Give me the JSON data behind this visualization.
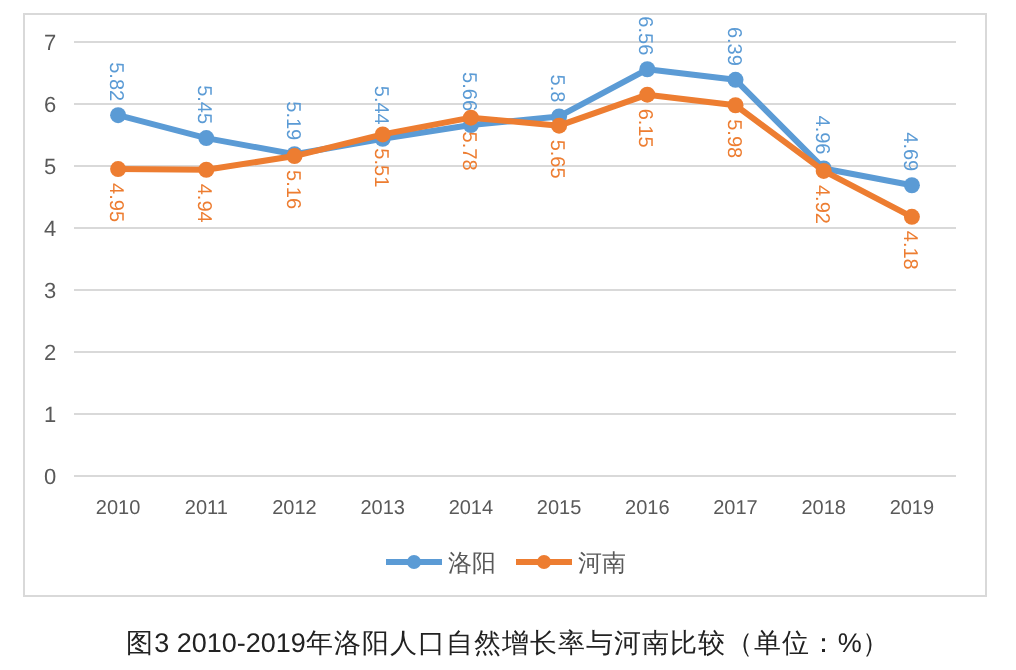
{
  "chart_data": {
    "type": "line",
    "title": "图3   2010-2019年洛阳人口自然增长率与河南比较（单位：%）",
    "categories": [
      "2010",
      "2011",
      "2012",
      "2013",
      "2014",
      "2015",
      "2016",
      "2017",
      "2018",
      "2019"
    ],
    "series": [
      {
        "name": "洛阳",
        "color": "#5b9bd5",
        "values": [
          5.82,
          5.45,
          5.19,
          5.44,
          5.66,
          5.8,
          6.56,
          6.39,
          4.96,
          4.69
        ]
      },
      {
        "name": "河南",
        "color": "#ed7d31",
        "values": [
          4.95,
          4.94,
          5.16,
          5.51,
          5.78,
          5.65,
          6.15,
          5.98,
          4.92,
          4.18
        ]
      }
    ],
    "ylim": [
      0,
      7
    ],
    "yticks": [
      0,
      1,
      2,
      3,
      4,
      5,
      6,
      7
    ],
    "grid": "y",
    "legend": "bottom",
    "marker": "circle",
    "line_style": "solid",
    "data_labels": true
  }
}
